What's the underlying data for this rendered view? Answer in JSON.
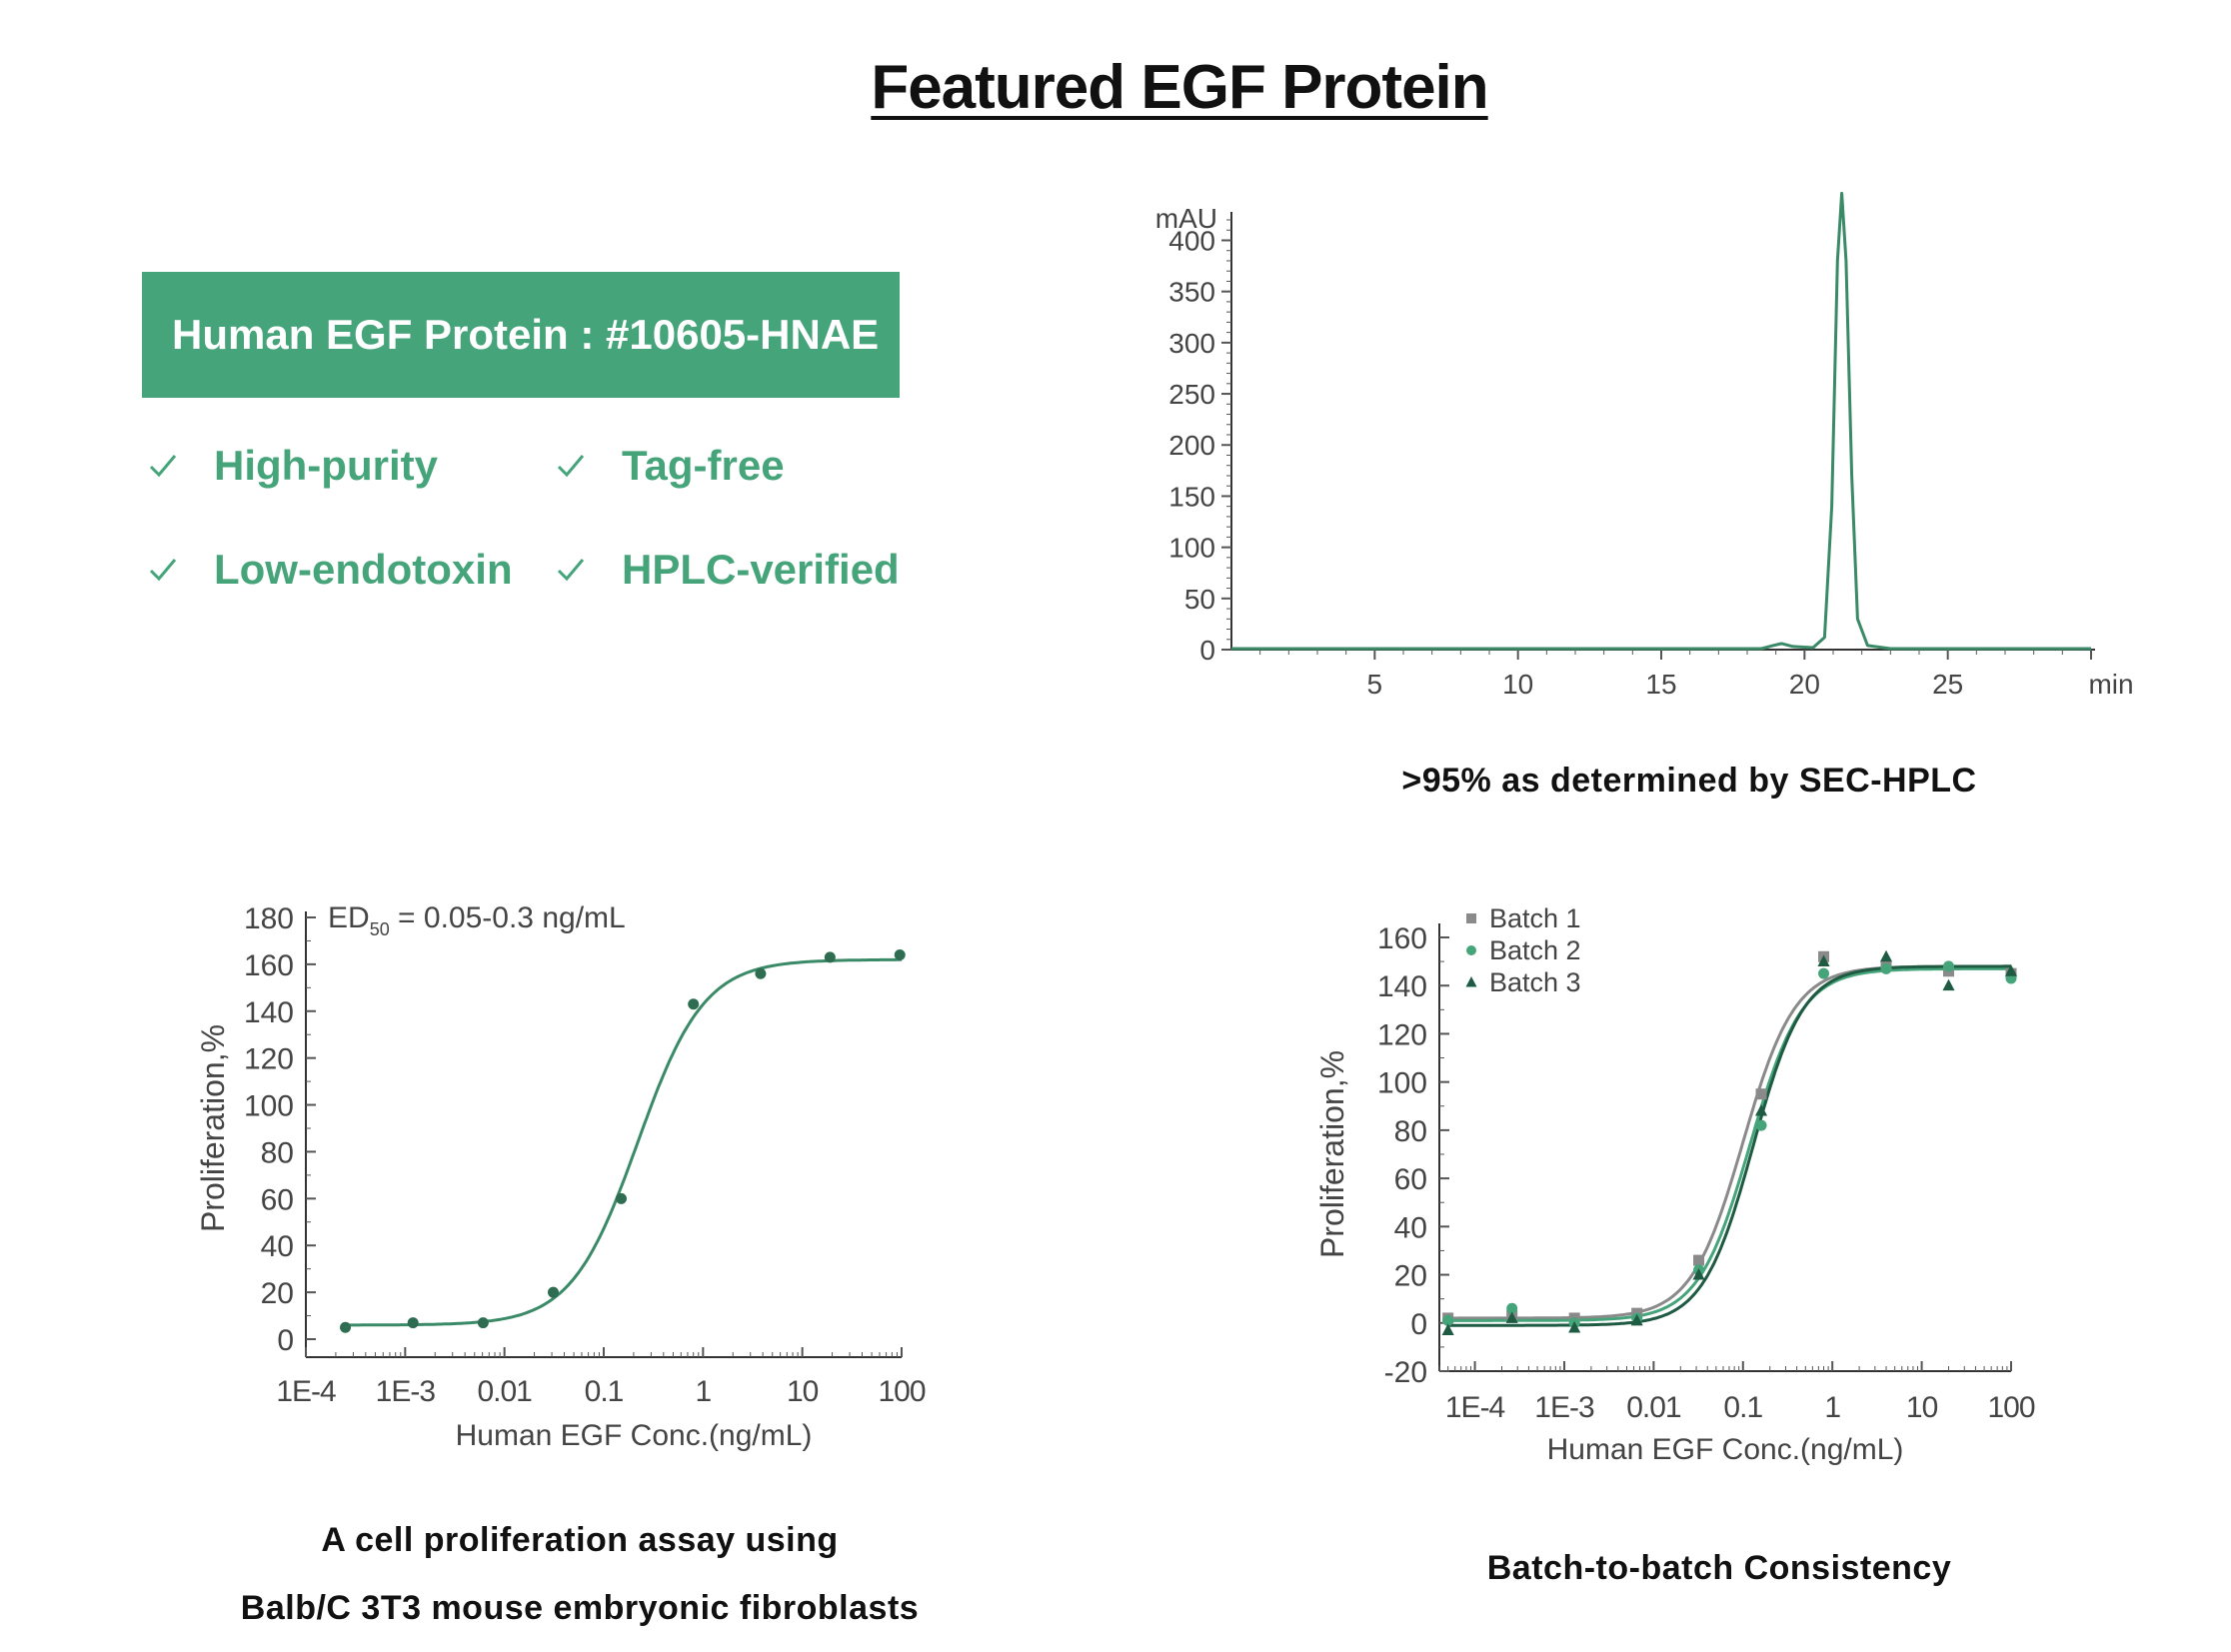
{
  "page": {
    "title": "Featured EGF Protein",
    "accent_color": "#46a47a",
    "product": {
      "name": "Human EGF Protein : #10605-HNAE"
    },
    "features": [
      {
        "label": "High-purity",
        "icon": "check-icon"
      },
      {
        "label": "Tag-free",
        "icon": "check-icon"
      },
      {
        "label": "Low-endotoxin",
        "icon": "check-icon"
      },
      {
        "label": "HPLC-verified",
        "icon": "check-icon"
      }
    ],
    "captions": {
      "hplc": ">95% as determined by SEC-HPLC",
      "assay_line1": "A cell proliferation assay using",
      "assay_line2": "Balb/C 3T3 mouse embryonic fibroblasts",
      "batch": "Batch-to-batch Consistency"
    }
  },
  "chart_data": [
    {
      "id": "hplc",
      "type": "line",
      "title": "",
      "xlabel": "min",
      "ylabel": "mAU",
      "xlim": [
        0,
        30
      ],
      "ylim": [
        0,
        420
      ],
      "xticks": [
        5,
        10,
        15,
        20,
        25
      ],
      "yticks": [
        0,
        50,
        100,
        150,
        200,
        250,
        300,
        350,
        400
      ],
      "grid": false,
      "color": "#3a8a68",
      "series": [
        {
          "x": [
            0,
            18.5,
            18.9,
            19.2,
            19.6,
            20.3,
            20.7,
            20.95,
            21.15,
            21.3,
            21.45,
            21.65,
            21.85,
            22.2,
            23,
            30
          ],
          "y": [
            1,
            1,
            4,
            6,
            3,
            2,
            12,
            140,
            380,
            446,
            380,
            170,
            30,
            4,
            1,
            1
          ]
        }
      ]
    },
    {
      "id": "proliferation",
      "type": "scatter",
      "title": "",
      "annotation": {
        "text": "ED",
        "subscript": "50",
        "suffix": "= 0.05-0.3 ng/mL"
      },
      "xlabel": "Human EGF Conc.(ng/mL)",
      "ylabel": "Proliferation,%",
      "x_scale": "log",
      "xlim": [
        0.0001,
        100
      ],
      "ylim": [
        0,
        180
      ],
      "xtick_labels": [
        "1E-4",
        "1E-3",
        "0.01",
        "0.1",
        "1",
        "10",
        "100"
      ],
      "xtick_values": [
        0.0001,
        0.001,
        0.01,
        0.1,
        1,
        10,
        100
      ],
      "yticks": [
        0,
        20,
        40,
        60,
        80,
        100,
        120,
        140,
        160,
        180
      ],
      "grid": false,
      "color": "#3a8a68",
      "point_color": "#2f6d52",
      "series": [
        {
          "x": [
            0.00025,
            0.0012,
            0.0061,
            0.031,
            0.15,
            0.8,
            3.8,
            19,
            96
          ],
          "y": [
            5,
            7,
            7,
            20,
            60,
            143,
            156,
            163,
            164
          ]
        }
      ],
      "fit": {
        "bottom": 6,
        "top": 162,
        "ec50": 0.22,
        "hill": 1.3
      }
    },
    {
      "id": "batch",
      "type": "scatter",
      "title": "",
      "xlabel": "Human EGF Conc.(ng/mL)",
      "ylabel": "Proliferation,%",
      "x_scale": "log",
      "xlim": [
        4e-05,
        100
      ],
      "ylim": [
        -20,
        160
      ],
      "xtick_labels": [
        "1E-4",
        "1E-3",
        "0.01",
        "0.1",
        "1",
        "10",
        "100"
      ],
      "xtick_values": [
        0.0001,
        0.001,
        0.01,
        0.1,
        1,
        10,
        100
      ],
      "yticks": [
        -20,
        0,
        20,
        40,
        60,
        80,
        100,
        120,
        140,
        160
      ],
      "grid": false,
      "legend_position": "top-left",
      "series": [
        {
          "name": "Batch 1",
          "marker": "square",
          "color": "#8a8a8a",
          "x": [
            5e-05,
            0.00026,
            0.0013,
            0.0065,
            0.032,
            0.16,
            0.8,
            4,
            20,
            100
          ],
          "y": [
            2,
            3,
            2,
            4,
            26,
            95,
            152,
            148,
            146,
            145
          ],
          "fit": {
            "bottom": 2,
            "top": 148,
            "ec50": 0.1,
            "hill": 1.5
          }
        },
        {
          "name": "Batch 2",
          "marker": "circle",
          "color": "#46a47a",
          "x": [
            5e-05,
            0.00026,
            0.0013,
            0.0065,
            0.032,
            0.16,
            0.8,
            4,
            20,
            100
          ],
          "y": [
            1,
            6,
            0,
            2,
            22,
            82,
            145,
            147,
            148,
            143
          ],
          "fit": {
            "bottom": 1,
            "top": 147,
            "ec50": 0.12,
            "hill": 1.5
          }
        },
        {
          "name": "Batch 3",
          "marker": "triangle",
          "color": "#1f5a43",
          "x": [
            5e-05,
            0.00026,
            0.0013,
            0.0065,
            0.032,
            0.16,
            0.8,
            4,
            20,
            100
          ],
          "y": [
            -3,
            2,
            -2,
            1,
            20,
            88,
            150,
            152,
            140,
            146
          ],
          "fit": {
            "bottom": -1,
            "top": 148,
            "ec50": 0.13,
            "hill": 1.55
          }
        }
      ]
    }
  ]
}
